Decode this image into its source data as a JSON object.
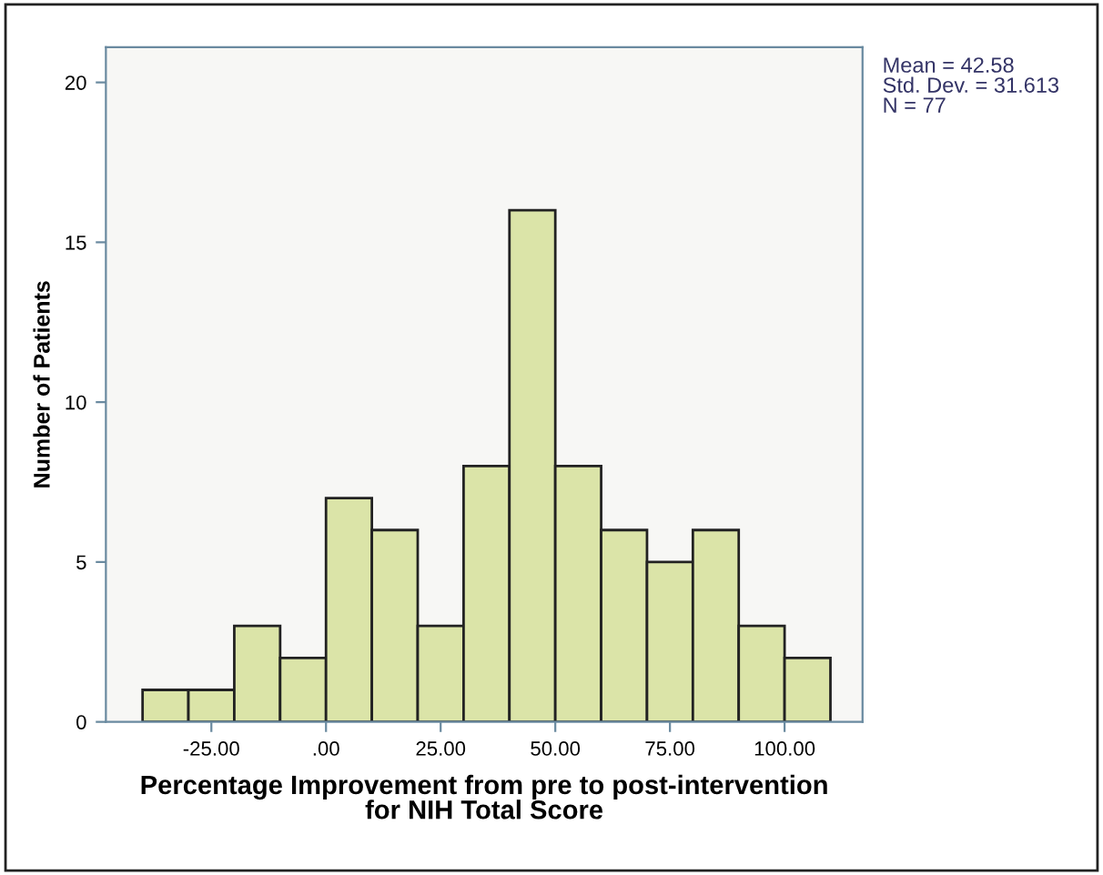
{
  "chart_data": {
    "type": "histogram",
    "xlabel": "Percentage Improvement from pre to post-intervention\nfor NIH Total Score",
    "ylabel": "Number of Patients",
    "bins": [
      -40,
      -30,
      -20,
      -10,
      0,
      10,
      20,
      30,
      40,
      50,
      60,
      70,
      80,
      90,
      100,
      110
    ],
    "values": [
      1,
      1,
      3,
      2,
      7,
      6,
      3,
      8,
      16,
      8,
      6,
      5,
      6,
      3,
      2
    ],
    "color": "#dbe4a8",
    "xlim": [
      -48,
      117
    ],
    "ylim": [
      0,
      21.1
    ],
    "xticks": [
      {
        "value": -25,
        "label": "-25.00"
      },
      {
        "value": 0,
        "label": ".00"
      },
      {
        "value": 25,
        "label": "25.00"
      },
      {
        "value": 50,
        "label": "50.00"
      },
      {
        "value": 75,
        "label": "75.00"
      },
      {
        "value": 100,
        "label": "100.00"
      }
    ],
    "yticks": [
      0,
      5,
      10,
      15,
      20
    ],
    "grid": false,
    "legend": false,
    "annotations": [
      "Mean = 42.58\nStd. Dev. = 31.613\nN = 77"
    ]
  }
}
